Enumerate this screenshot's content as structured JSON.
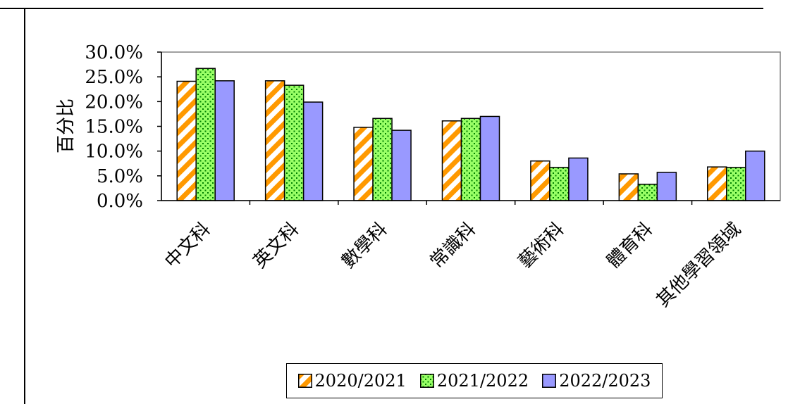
{
  "chart_data": {
    "type": "bar",
    "ylabel": "百分比",
    "ylim": [
      0,
      30
    ],
    "yticks": [
      "0.0%",
      "5.0%",
      "10.0%",
      "15.0%",
      "20.0%",
      "25.0%",
      "30.0%"
    ],
    "categories": [
      "中文科",
      "英文科",
      "數學科",
      "常識科",
      "藝術科",
      "體育科",
      "其他學習領域"
    ],
    "series": [
      {
        "name": "2020/2021",
        "values": [
          24.1,
          24.2,
          14.8,
          16.1,
          8.0,
          5.4,
          6.8
        ]
      },
      {
        "name": "2021/2022",
        "values": [
          26.7,
          23.3,
          16.6,
          16.6,
          6.7,
          3.3,
          6.7
        ]
      },
      {
        "name": "2022/2023",
        "values": [
          24.2,
          19.9,
          14.2,
          17.0,
          8.6,
          5.7,
          10.0
        ]
      }
    ],
    "legend_position": "bottom",
    "colors": {
      "s0_stripe": "#FF9900",
      "s1_fill": "#99FF66",
      "s1_dot": "#008000",
      "s2_fill": "#9999FF",
      "axis": "#000000",
      "plot_border": "#808080"
    }
  }
}
